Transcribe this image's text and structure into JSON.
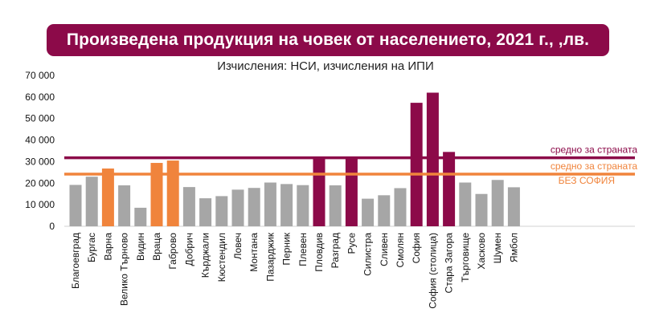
{
  "chart_data": {
    "type": "bar",
    "title": "Произведена продукция на човек от населението, 2021 г., ,лв.",
    "subtitle": "Изчисления: НСИ, изчисления на ИПИ",
    "xlabel": "",
    "ylabel": "",
    "ylim": [
      0,
      70000
    ],
    "yticks": [
      0,
      10000,
      20000,
      30000,
      40000,
      50000,
      60000,
      70000
    ],
    "ytick_labels": [
      "0",
      "10 000",
      "20 000",
      "30 000",
      "40 000",
      "50 000",
      "60 000",
      "70 000"
    ],
    "grid": false,
    "categories": [
      "Благоевград",
      "Бургас",
      "Варна",
      "Велико Търново",
      "Видин",
      "Враца",
      "Габрово",
      "Добрич",
      "Кърджали",
      "Кюстендил",
      "Ловеч",
      "Монтана",
      "Пазарджик",
      "Перник",
      "Плевен",
      "Пловдив",
      "Разград",
      "Русе",
      "Силистра",
      "Сливен",
      "Смолян",
      "София",
      "София (столица)",
      "Стара Загора",
      "Търговище",
      "Хасково",
      "Шумен",
      "Ямбол"
    ],
    "values": [
      19200,
      23000,
      26800,
      19000,
      8600,
      29400,
      30500,
      18200,
      13000,
      14000,
      17000,
      17800,
      20300,
      19600,
      19100,
      32000,
      19000,
      32000,
      12800,
      14400,
      17700,
      57300,
      62000,
      34500,
      20300,
      15000,
      21500,
      18100
    ],
    "bar_colors": [
      "#a6a6a6",
      "#a6a6a6",
      "#f0843c",
      "#a6a6a6",
      "#a6a6a6",
      "#f0843c",
      "#f0843c",
      "#a6a6a6",
      "#a6a6a6",
      "#a6a6a6",
      "#a6a6a6",
      "#a6a6a6",
      "#a6a6a6",
      "#a6a6a6",
      "#a6a6a6",
      "#8c0a49",
      "#a6a6a6",
      "#8c0a49",
      "#a6a6a6",
      "#a6a6a6",
      "#a6a6a6",
      "#8c0a49",
      "#8c0a49",
      "#8c0a49",
      "#a6a6a6",
      "#a6a6a6",
      "#a6a6a6",
      "#a6a6a6"
    ],
    "reference_lines": [
      {
        "label": "средно за страната",
        "value": 31800,
        "color": "#8c0a49"
      },
      {
        "label": "средно за страната",
        "label2": "БЕЗ СОФИЯ",
        "value": 24200,
        "color": "#f0843c"
      }
    ]
  }
}
